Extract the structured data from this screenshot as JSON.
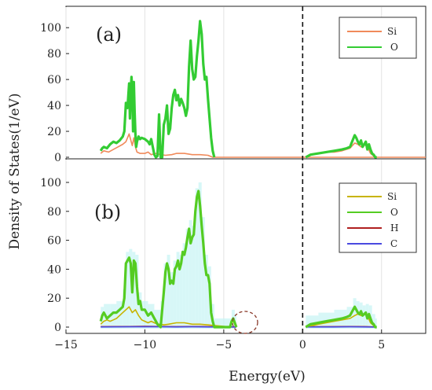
{
  "shared": {
    "ylabel": "Density of States(1/eV)",
    "xlabel": "Energy(eV)",
    "xticks": [
      -15,
      -10,
      -5,
      0,
      5
    ],
    "xlim": [
      -15,
      7.8
    ],
    "fermi_level": 0
  },
  "chart_data": [
    {
      "type": "line",
      "panel_label": "(a)",
      "ylim": [
        0,
        108
      ],
      "yticks": [
        0,
        20,
        40,
        60,
        80,
        100
      ],
      "legend": "top-right",
      "grid": "vertical",
      "series": [
        {
          "name": "Si",
          "color": "#f08a5a",
          "x": [
            -12.8,
            -12.6,
            -12.3,
            -12.0,
            -11.7,
            -11.4,
            -11.2,
            -11.0,
            -10.8,
            -10.7,
            -10.6,
            -10.5,
            -10.3,
            -10.0,
            -9.8,
            -9.6,
            -9.3,
            -9.0,
            -8.7,
            -8.3,
            -8.0,
            -7.5,
            -7.0,
            -6.5,
            -6.0,
            -5.7,
            3.9,
            4.0,
            4.5,
            5.0,
            6.0,
            7.0,
            7.8
          ],
          "y": [
            3,
            5,
            4,
            6,
            8,
            10,
            12,
            18,
            9,
            15,
            8,
            4,
            3,
            3,
            4,
            2,
            3,
            2,
            1.5,
            2,
            3,
            3,
            2,
            2,
            1.5,
            0,
            0,
            0,
            0,
            0,
            0,
            0,
            0
          ],
          "x2": [
            0.2,
            0.6,
            1.0,
            1.5,
            2.0,
            2.5,
            3.0,
            3.3,
            3.5,
            3.7,
            3.9,
            4.1,
            4.3,
            4.6
          ],
          "y2": [
            0.5,
            2,
            3,
            4,
            4,
            5,
            7,
            11,
            10,
            8,
            10,
            8,
            3,
            0
          ]
        },
        {
          "name": "O",
          "color": "#33cc33",
          "x": [
            -12.8,
            -12.7,
            -12.6,
            -12.4,
            -12.2,
            -12.0,
            -11.8,
            -11.6,
            -11.4,
            -11.3,
            -11.2,
            -11.1,
            -11.0,
            -10.95,
            -10.9,
            -10.85,
            -10.8,
            -10.75,
            -10.7,
            -10.65,
            -10.6,
            -10.55,
            -10.5,
            -10.4,
            -10.3,
            -10.2,
            -10.0,
            -9.8,
            -9.7,
            -9.6,
            -9.5,
            -9.4,
            -9.3,
            -9.2,
            -9.1,
            -9.0,
            -8.9,
            -8.8,
            -8.7,
            -8.6,
            -8.5,
            -8.4,
            -8.3,
            -8.2,
            -8.1,
            -8.0,
            -7.9,
            -7.8,
            -7.7,
            -7.6,
            -7.5,
            -7.4,
            -7.3,
            -7.2,
            -7.1,
            -7.0,
            -6.9,
            -6.8,
            -6.7,
            -6.6,
            -6.5,
            -6.4,
            -6.3,
            -6.2,
            -6.1,
            -6.0,
            -5.9,
            -5.8,
            -5.7,
            -5.6
          ],
          "y": [
            5,
            7,
            8,
            7,
            10,
            12,
            11,
            13,
            16,
            20,
            42,
            38,
            57,
            30,
            50,
            62,
            52,
            20,
            58,
            35,
            18,
            8,
            12,
            16,
            14,
            15,
            14,
            12,
            10,
            14,
            8,
            2,
            0,
            1,
            33,
            0,
            0,
            25,
            30,
            40,
            18,
            22,
            38,
            48,
            52,
            44,
            48,
            40,
            45,
            42,
            38,
            32,
            38,
            70,
            90,
            68,
            60,
            62,
            78,
            90,
            105,
            95,
            72,
            60,
            62,
            45,
            30,
            15,
            5,
            0
          ],
          "x2": [
            0.2,
            0.5,
            1.0,
            1.5,
            2.0,
            2.5,
            2.8,
            3.0,
            3.2,
            3.3,
            3.4,
            3.5,
            3.6,
            3.7,
            3.8,
            3.9,
            4.0,
            4.1,
            4.2,
            4.3,
            4.4,
            4.5,
            4.6,
            4.7
          ],
          "y2": [
            0,
            2,
            3,
            4,
            5,
            6,
            7,
            8,
            14,
            17,
            15,
            12,
            10,
            13,
            8,
            10,
            12,
            6,
            10,
            6,
            3,
            2,
            0,
            0
          ]
        }
      ]
    },
    {
      "type": "line",
      "panel_label": "(b)",
      "ylim": [
        0,
        100
      ],
      "yticks": [
        0,
        20,
        40,
        60,
        80,
        100
      ],
      "legend": "top-right",
      "grid": "vertical",
      "annotation": "circled small peak near -4.4 eV",
      "series": [
        {
          "name": "Si",
          "color": "#c8b400",
          "x": [
            -12.8,
            -12.6,
            -12.4,
            -12.2,
            -12.0,
            -11.8,
            -11.6,
            -11.4,
            -11.2,
            -11.0,
            -10.8,
            -10.6,
            -10.4,
            -10.2,
            -10.0,
            -9.8,
            -9.6,
            -9.4,
            -9.2,
            -9.0,
            -8.8,
            -8.5,
            -8.0,
            -7.5,
            -7.0,
            -6.5,
            -6.0,
            -5.5,
            -5.0,
            -4.6,
            -4.5,
            -4.4,
            -4.3,
            -4.2
          ],
          "y": [
            2,
            4,
            5,
            4,
            5,
            6,
            8,
            10,
            12,
            14,
            10,
            12,
            8,
            5,
            4,
            3,
            4,
            3,
            2,
            2,
            1.5,
            2,
            3,
            3,
            2,
            2,
            1.5,
            1,
            0.5,
            0,
            3,
            4,
            2,
            0
          ],
          "x2": [
            0.2,
            0.6,
            1.0,
            1.5,
            2.0,
            2.5,
            3.0,
            3.3,
            3.5,
            3.7,
            3.9,
            4.1,
            4.3,
            4.6
          ],
          "y2": [
            0.5,
            1,
            2,
            3,
            4,
            5,
            6,
            8,
            9,
            8,
            9,
            8,
            3,
            0
          ]
        },
        {
          "name": "O",
          "color": "#55cc22",
          "x": [
            -12.8,
            -12.7,
            -12.6,
            -12.4,
            -12.2,
            -12.0,
            -11.8,
            -11.6,
            -11.4,
            -11.3,
            -11.2,
            -11.1,
            -11.0,
            -10.9,
            -10.8,
            -10.7,
            -10.6,
            -10.5,
            -10.4,
            -10.3,
            -10.2,
            -10.0,
            -9.8,
            -9.6,
            -9.4,
            -9.2,
            -9.0,
            -8.9,
            -8.8,
            -8.7,
            -8.6,
            -8.5,
            -8.4,
            -8.3,
            -8.2,
            -8.1,
            -8.0,
            -7.9,
            -7.8,
            -7.7,
            -7.6,
            -7.5,
            -7.4,
            -7.3,
            -7.2,
            -7.1,
            -7.0,
            -6.9,
            -6.8,
            -6.7,
            -6.6,
            -6.5,
            -6.4,
            -6.3,
            -6.2,
            -6.1,
            -6.0,
            -5.9,
            -5.8,
            -5.7,
            -5.6,
            -4.6,
            -4.5,
            -4.4,
            -4.3,
            -4.2
          ],
          "y": [
            4,
            8,
            10,
            6,
            8,
            10,
            10,
            12,
            14,
            20,
            44,
            46,
            48,
            44,
            24,
            46,
            44,
            28,
            16,
            18,
            12,
            12,
            8,
            10,
            6,
            2,
            0,
            12,
            24,
            38,
            44,
            40,
            30,
            32,
            30,
            40,
            42,
            46,
            40,
            44,
            52,
            50,
            55,
            62,
            68,
            58,
            62,
            64,
            80,
            90,
            94,
            84,
            70,
            58,
            44,
            36,
            36,
            30,
            10,
            4,
            0,
            0,
            4,
            6,
            3,
            0
          ],
          "x2": [
            0.2,
            0.5,
            1.0,
            1.5,
            2.0,
            2.5,
            2.8,
            3.0,
            3.2,
            3.3,
            3.4,
            3.5,
            3.6,
            3.7,
            3.8,
            3.9,
            4.0,
            4.1,
            4.2,
            4.3,
            4.4,
            4.5,
            4.6,
            4.7
          ],
          "y2": [
            0,
            2,
            3,
            4,
            5,
            6,
            7,
            8,
            12,
            14,
            12,
            10,
            9,
            11,
            8,
            9,
            10,
            6,
            9,
            6,
            3,
            2,
            0,
            0
          ]
        },
        {
          "name": "H",
          "color": "#b02020",
          "x": [
            -12.8,
            -11.0,
            -10.0,
            -9.0,
            -8.0,
            -7.0,
            -6.0,
            -5.0,
            -4.2
          ],
          "y": [
            0.3,
            0.4,
            0.5,
            0.4,
            0.3,
            0.4,
            0.3,
            0.2,
            0.1
          ],
          "x2": [
            0.2,
            2.0,
            3.0,
            4.0,
            4.6
          ],
          "y2": [
            0.2,
            0.3,
            0.4,
            0.3,
            0.1
          ]
        },
        {
          "name": "C",
          "color": "#4a4ae0",
          "x": [
            -12.8,
            -11.0,
            -10.0,
            -9.0,
            -8.0,
            -7.0,
            -6.0,
            -5.0,
            -4.2
          ],
          "y": [
            0.1,
            0.2,
            0.2,
            0.2,
            0.1,
            0.2,
            0.1,
            0.1,
            0
          ],
          "x2": [
            0.2,
            2.0,
            3.0,
            4.0,
            4.6
          ],
          "y2": [
            0.1,
            0.1,
            0.2,
            0.1,
            0
          ]
        }
      ]
    }
  ]
}
